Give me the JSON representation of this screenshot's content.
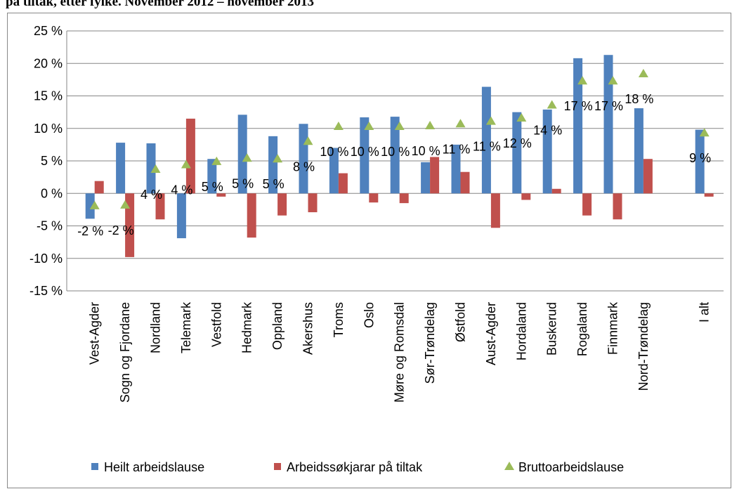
{
  "chart_data": {
    "type": "bar",
    "title": "på tiltak, etter fylke. November 2012 – november 2013",
    "categories": [
      "Vest-Agder",
      "Sogn og Fjordane",
      "Nordland",
      "Telemark",
      "Vestfold",
      "Hedmark",
      "Oppland",
      "Akershus",
      "Troms",
      "Oslo",
      "Møre og Romsdal",
      "Sør-Trøndelag",
      "Østfold",
      "Aust-Agder",
      "Hordaland",
      "Buskerud",
      "Rogaland",
      "Finnmark",
      "Nord-Trøndelag",
      null,
      "I alt"
    ],
    "series": [
      {
        "name": "Heilt arbeidslause",
        "color": "#4f81bd",
        "kind": "bar",
        "values": [
          -3.9,
          7.8,
          7.7,
          -6.9,
          5.3,
          12.1,
          8.8,
          10.7,
          7.0,
          11.7,
          11.8,
          4.8,
          7.5,
          16.4,
          12.5,
          12.9,
          20.8,
          21.3,
          13.1,
          null,
          9.8
        ]
      },
      {
        "name": "Arbeidssøkjarar på tiltak",
        "color": "#c0504d",
        "kind": "bar",
        "values": [
          1.9,
          -9.8,
          -4.0,
          11.5,
          -0.5,
          -6.8,
          -3.4,
          -2.9,
          3.1,
          -1.4,
          -1.5,
          5.6,
          3.3,
          -5.3,
          -1.0,
          0.7,
          -3.4,
          -4.0,
          5.3,
          null,
          -0.5
        ]
      },
      {
        "name": "Bruttoarbeidslause",
        "color": "#9bbb59",
        "kind": "marker",
        "values": [
          -1.9,
          -1.8,
          3.7,
          4.4,
          4.9,
          5.4,
          5.3,
          8.0,
          10.3,
          10.3,
          10.3,
          10.4,
          10.7,
          11.1,
          11.6,
          13.6,
          17.3,
          17.3,
          18.4,
          null,
          9.3
        ],
        "value_labels": [
          "-2 %",
          "-2 %",
          "4 %",
          "4 %",
          "5 %",
          "5 %",
          "5 %",
          "8 %",
          "10 %",
          "10 %",
          "10 %",
          "10 %",
          "11 %",
          "11 %",
          "12 %",
          "14 %",
          "17 %",
          "17 %",
          "18 %",
          null,
          "9 %"
        ]
      }
    ],
    "ylim": [
      -15,
      25
    ],
    "yticks": [
      {
        "value": -15,
        "label": "-15 %"
      },
      {
        "value": -10,
        "label": "-10 %"
      },
      {
        "value": -5,
        "label": "-5 %"
      },
      {
        "value": 0,
        "label": "0 %"
      },
      {
        "value": 5,
        "label": "5 %"
      },
      {
        "value": 10,
        "label": "10 %"
      },
      {
        "value": 15,
        "label": "15 %"
      },
      {
        "value": 20,
        "label": "20 %"
      },
      {
        "value": 25,
        "label": "25 %"
      }
    ],
    "grid": true,
    "legend": "bottom"
  }
}
